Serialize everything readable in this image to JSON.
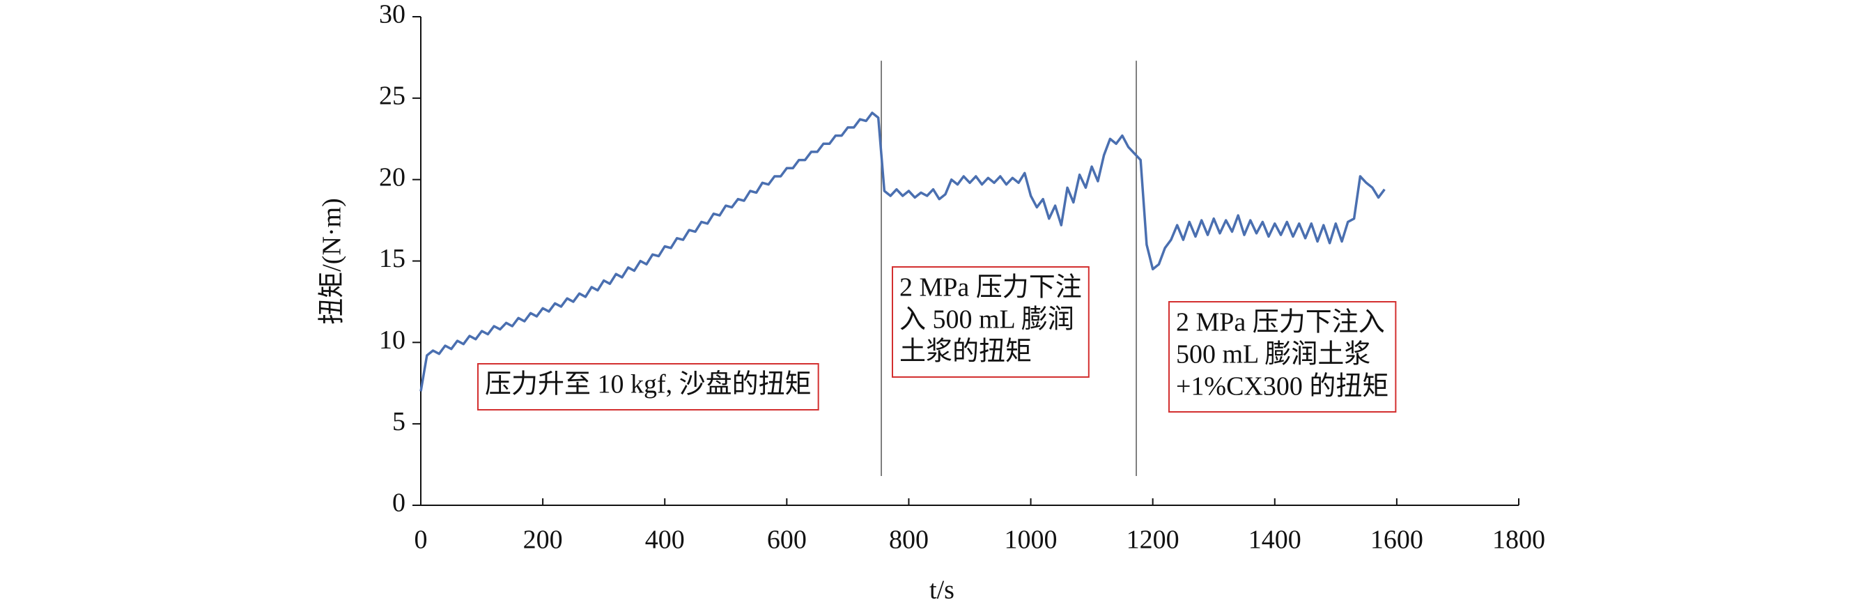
{
  "chart_data": {
    "type": "line",
    "x_label": "t/s",
    "y_label": "扭矩/(N·m)",
    "x": [
      0,
      10,
      20,
      30,
      40,
      50,
      60,
      70,
      80,
      90,
      100,
      110,
      120,
      130,
      140,
      150,
      160,
      170,
      180,
      190,
      200,
      210,
      220,
      230,
      240,
      250,
      260,
      270,
      280,
      290,
      300,
      310,
      320,
      330,
      340,
      350,
      360,
      370,
      380,
      390,
      400,
      410,
      420,
      430,
      440,
      450,
      460,
      470,
      480,
      490,
      500,
      510,
      520,
      530,
      540,
      550,
      560,
      570,
      580,
      590,
      600,
      610,
      620,
      630,
      640,
      650,
      660,
      670,
      680,
      690,
      700,
      710,
      720,
      730,
      740,
      750,
      760,
      770,
      780,
      790,
      800,
      810,
      820,
      830,
      840,
      850,
      860,
      870,
      880,
      890,
      900,
      910,
      920,
      930,
      940,
      950,
      960,
      970,
      980,
      990,
      1000,
      1010,
      1020,
      1030,
      1040,
      1050,
      1060,
      1070,
      1080,
      1090,
      1100,
      1110,
      1120,
      1130,
      1140,
      1150,
      1160,
      1170,
      1180,
      1190,
      1200,
      1210,
      1220,
      1230,
      1240,
      1250,
      1260,
      1270,
      1280,
      1290,
      1300,
      1310,
      1320,
      1330,
      1340,
      1350,
      1360,
      1370,
      1380,
      1390,
      1400,
      1410,
      1420,
      1430,
      1440,
      1450,
      1460,
      1470,
      1480,
      1490,
      1500,
      1510,
      1520,
      1530,
      1540,
      1550,
      1560,
      1570,
      1580
    ],
    "series": [
      {
        "color": "#4a6fb0",
        "values": [
          7.0,
          9.2,
          9.5,
          9.3,
          9.8,
          9.6,
          10.1,
          9.9,
          10.4,
          10.2,
          10.7,
          10.5,
          11.0,
          10.8,
          11.2,
          11.0,
          11.5,
          11.3,
          11.8,
          11.6,
          12.1,
          11.9,
          12.4,
          12.2,
          12.7,
          12.5,
          13.0,
          12.8,
          13.4,
          13.2,
          13.8,
          13.6,
          14.2,
          14.0,
          14.6,
          14.4,
          15.0,
          14.8,
          15.4,
          15.3,
          15.9,
          15.8,
          16.4,
          16.3,
          16.9,
          16.8,
          17.4,
          17.3,
          17.9,
          17.8,
          18.4,
          18.3,
          18.8,
          18.7,
          19.3,
          19.2,
          19.8,
          19.7,
          20.2,
          20.2,
          20.7,
          20.7,
          21.2,
          21.2,
          21.7,
          21.7,
          22.2,
          22.2,
          22.7,
          22.7,
          23.2,
          23.2,
          23.7,
          23.6,
          24.1,
          23.8,
          19.3,
          19.0,
          19.4,
          19.0,
          19.3,
          18.9,
          19.2,
          19.0,
          19.4,
          18.8,
          19.1,
          20.0,
          19.7,
          20.2,
          19.8,
          20.2,
          19.7,
          20.1,
          19.8,
          20.2,
          19.7,
          20.1,
          19.8,
          20.4,
          19.0,
          18.3,
          18.8,
          17.6,
          18.4,
          17.2,
          19.5,
          18.6,
          20.3,
          19.5,
          20.8,
          19.9,
          21.5,
          22.5,
          22.2,
          22.7,
          22.0,
          21.6,
          21.2,
          16.0,
          14.5,
          14.8,
          15.8,
          16.3,
          17.2,
          16.3,
          17.4,
          16.5,
          17.5,
          16.6,
          17.6,
          16.7,
          17.5,
          16.8,
          17.8,
          16.6,
          17.5,
          16.7,
          17.4,
          16.5,
          17.3,
          16.6,
          17.4,
          16.5,
          17.3,
          16.4,
          17.3,
          16.2,
          17.2,
          16.1,
          17.3,
          16.2,
          17.4,
          17.6,
          20.2,
          19.8,
          19.5,
          18.9,
          19.4
        ]
      }
    ],
    "xlim": [
      0,
      1800
    ],
    "xticks": [
      0,
      200,
      400,
      600,
      800,
      1000,
      1200,
      1400,
      1600,
      1800
    ],
    "ylim": [
      0,
      30
    ],
    "yticks": [
      0,
      5,
      10,
      15,
      20,
      25,
      30
    ],
    "marker_lines": [
      755,
      1173
    ],
    "annotations": [
      {
        "lines": [
          "压力升至 10 kgf, 沙盘的扭矩"
        ]
      },
      {
        "lines": [
          "2 MPa 压力下注",
          "入 500 mL 膨润",
          "土浆的扭矩"
        ]
      },
      {
        "lines": [
          "2 MPa 压力下注入",
          "500 mL 膨润土浆",
          "+1%CX300 的扭矩"
        ]
      }
    ]
  }
}
